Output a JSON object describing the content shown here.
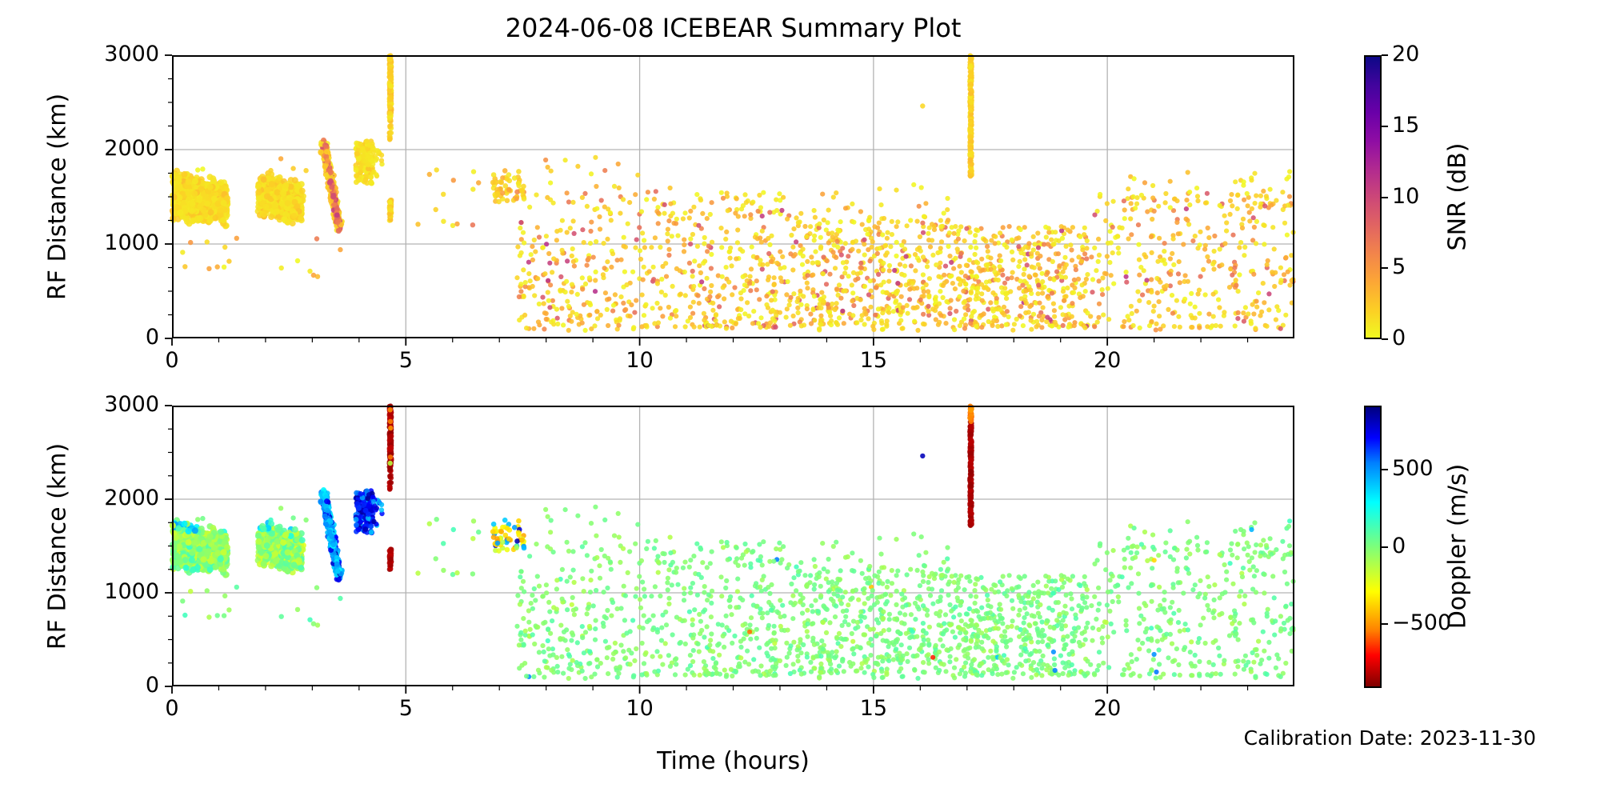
{
  "title": "2024-06-08 ICEBEAR Summary Plot",
  "xlabel": "Time (hours)",
  "ylabel": "RF Distance (km)",
  "footnote": "Calibration Date: 2023-11-30",
  "seed": 20240608,
  "axes": {
    "x": {
      "min": 0,
      "max": 24,
      "majors": [
        0,
        5,
        10,
        15,
        20
      ],
      "minors": [
        1,
        2,
        3,
        4,
        6,
        7,
        8,
        9,
        11,
        12,
        13,
        14,
        16,
        17,
        18,
        19,
        21,
        22,
        23
      ],
      "grid": [
        5,
        10,
        15,
        20
      ]
    },
    "y": {
      "min": 0,
      "max": 3000,
      "majors": [
        0,
        1000,
        2000,
        3000
      ],
      "minors": [
        250,
        500,
        750,
        1250,
        1500,
        1750,
        2250,
        2500,
        2750
      ],
      "grid": [
        1000,
        2000
      ]
    }
  },
  "colorbars": [
    {
      "label": "SNR (dB)",
      "vmin": 0,
      "vmax": 20,
      "ticks": [
        0,
        5,
        10,
        15,
        20
      ],
      "colormap": "plasma_r"
    },
    {
      "label": "Doppler (m/s)",
      "vmin": -912,
      "vmax": 912,
      "ticks": [
        -500,
        0,
        500
      ],
      "colormap": "jet_r"
    }
  ],
  "colormaps": {
    "plasma": [
      [
        0,
        "#0d0887"
      ],
      [
        0.1,
        "#41049d"
      ],
      [
        0.2,
        "#6a00a8"
      ],
      [
        0.3,
        "#8f0da4"
      ],
      [
        0.4,
        "#b12a90"
      ],
      [
        0.5,
        "#cc4778"
      ],
      [
        0.6,
        "#e16462"
      ],
      [
        0.7,
        "#f2844b"
      ],
      [
        0.8,
        "#fca636"
      ],
      [
        0.9,
        "#fcce25"
      ],
      [
        1,
        "#f0f921"
      ]
    ],
    "jet": [
      [
        0,
        "#00007f"
      ],
      [
        0.11,
        "#0000ff"
      ],
      [
        0.2,
        "#0080ff"
      ],
      [
        0.34,
        "#00ffff"
      ],
      [
        0.5,
        "#7dff7a"
      ],
      [
        0.66,
        "#ffff00"
      ],
      [
        0.8,
        "#ff8000"
      ],
      [
        0.89,
        "#ff0000"
      ],
      [
        1,
        "#7f0000"
      ]
    ]
  },
  "style": {
    "grid_color": "#b3b3b3",
    "axis_color": "#000000",
    "bg": "#ffffff",
    "dot_opacity": 0.88
  },
  "chart_data": {
    "type": "scatter",
    "x_unit": "hours",
    "y_unit": "km",
    "xlim": [
      0,
      24
    ],
    "ylim": [
      0,
      3000
    ],
    "panels": [
      {
        "name": "snr",
        "color_by": "SNR (dB)",
        "range": [
          0,
          20
        ]
      },
      {
        "name": "doppler",
        "color_by": "Doppler (m/s)",
        "range": [
          -912,
          912
        ]
      }
    ],
    "features": [
      {
        "kind": "blob",
        "n": 780,
        "t": [
          0.02,
          1.18
        ],
        "km_top": [
          1815,
          1655
        ],
        "km_bot": [
          1235,
          1175
        ],
        "snr": [
          0.8,
          3.2
        ],
        "dop_mean": -20,
        "dop_sd": 90,
        "edge_dop": [
          240,
          520
        ],
        "r": 4
      },
      {
        "kind": "blob",
        "n": 330,
        "t": [
          1.86,
          2.34
        ],
        "km_top": [
          1760,
          1720
        ],
        "km_bot": [
          1260,
          1225
        ],
        "snr": [
          0.8,
          3.2
        ],
        "dop_mean": -25,
        "dop_sd": 95,
        "edge_dop": [
          200,
          430
        ],
        "r": 4
      },
      {
        "kind": "blob",
        "n": 300,
        "t": [
          2.36,
          2.78
        ],
        "km_top": [
          1715,
          1680
        ],
        "km_bot": [
          1230,
          1205
        ],
        "snr": [
          0.8,
          3.0
        ],
        "dop_mean": -30,
        "dop_sd": 95,
        "edge_dop": [
          180,
          400
        ],
        "r": 4
      },
      {
        "kind": "streak",
        "n": 430,
        "from": [
          3.24,
          2065
        ],
        "to": [
          3.58,
          1170
        ],
        "width_t": 0.1,
        "snr_core": [
          4.5,
          11
        ],
        "snr_fringe": [
          0.6,
          3.2
        ],
        "dop": [
          300,
          560
        ],
        "dop_hi": [
          680,
          870
        ],
        "dop_hi_p": 0.14,
        "r": 3.5
      },
      {
        "kind": "patch",
        "n": 140,
        "t": [
          3.93,
          4.3
        ],
        "km": [
          1640,
          2095
        ],
        "snr": [
          0.6,
          2.8
        ],
        "dop_opts": [
          [
            0.75,
            640,
            880
          ],
          [
            0.25,
            380,
            620
          ]
        ],
        "r": 3.4
      },
      {
        "kind": "patch",
        "n": 16,
        "t": [
          4.28,
          4.5
        ],
        "km": [
          1700,
          2100
        ],
        "snr": [
          0.6,
          2.4
        ],
        "dop_opts": [
          [
            0.6,
            640,
            860
          ],
          [
            0.4,
            300,
            500
          ]
        ],
        "r": 3.2
      },
      {
        "kind": "vstreak",
        "t": 4.67,
        "width_t": 0.045,
        "segments": [
          {
            "km": [
              2300,
              2995
            ],
            "n": 170,
            "snr": [
              0.7,
              3.2
            ],
            "dop": [
              -885,
              -800
            ]
          },
          {
            "km": [
              2095,
              2260
            ],
            "n": 12,
            "snr": [
              0.7,
              2.5
            ],
            "dop": [
              -880,
              -800
            ]
          },
          {
            "km": [
              1245,
              1465
            ],
            "n": 42,
            "snr": [
              0.7,
              3.0
            ],
            "dop": [
              -880,
              -800
            ]
          }
        ],
        "extras": [
          [
            4.665,
            2955,
            1.6,
            -520
          ],
          [
            4.67,
            2830,
            2.2,
            -540
          ],
          [
            4.675,
            2760,
            2.0,
            -500
          ],
          [
            4.67,
            2450,
            1.8,
            -560
          ],
          [
            4.665,
            2385,
            1.4,
            -140
          ]
        ],
        "r": 3.2
      },
      {
        "kind": "vstreak",
        "t": 17.08,
        "width_t": 0.04,
        "segments": [
          {
            "km": [
              1715,
              2825
            ],
            "n": 210,
            "snr": [
              0.7,
              3.0
            ],
            "dop": [
              -885,
              -810
            ]
          },
          {
            "km": [
              2825,
              2998
            ],
            "n": 34,
            "snr": [
              0.7,
              3.0
            ],
            "dop": [
              -600,
              -480
            ]
          }
        ],
        "extras": [],
        "r": 3.2
      },
      {
        "kind": "dots",
        "pts": [
          [
            16.05,
            2462,
            1.6,
            820
          ]
        ],
        "r": 3.2
      },
      {
        "kind": "patch",
        "n": 58,
        "t": [
          6.85,
          7.56
        ],
        "km": [
          1445,
          1785
        ],
        "snr": [
          0.8,
          6.5
        ],
        "dop_opts": [
          [
            0.45,
            -420,
            -220
          ],
          [
            0.2,
            -560,
            -430
          ],
          [
            0.2,
            380,
            540
          ],
          [
            0.08,
            700,
            840
          ],
          [
            0.07,
            -180,
            -60
          ]
        ],
        "r": 3.3
      },
      {
        "kind": "scatter",
        "n": 17,
        "t": [
          0.05,
          3.65
        ],
        "km": [
          640,
          1090
        ],
        "pow": 1,
        "snr_scale": 2.2,
        "dop_sd": 70,
        "r": 3.2
      },
      {
        "kind": "scatter",
        "n": 6,
        "t": [
          0.1,
          2.9
        ],
        "km": [
          1775,
          1905
        ],
        "pow": 1,
        "snr_scale": 1.8,
        "dop_sd": 120,
        "r": 3.2
      },
      {
        "kind": "scatter",
        "n": 13,
        "t": [
          5.1,
          6.8
        ],
        "km": [
          1150,
          1800
        ],
        "pow": 1,
        "snr_scale": 2.2,
        "dop_sd": 110,
        "r": 3.2
      },
      {
        "kind": "scatter",
        "n": 240,
        "t": [
          7.35,
          10.2
        ],
        "km": [
          140,
          1560
        ],
        "pow": 1.25,
        "snr_scale": 2.9,
        "dop_sd": 55,
        "r": 3.1
      },
      {
        "kind": "scatter",
        "n": 300,
        "t": [
          10.2,
          13.2
        ],
        "km": [
          115,
          1530
        ],
        "pow": 1.3,
        "snr_scale": 2.9,
        "dop_sd": 55,
        "r": 3.1
      },
      {
        "kind": "scatter",
        "n": 450,
        "t": [
          13.2,
          16.6
        ],
        "km": [
          135,
          1270
        ],
        "pow": 1.15,
        "snr_scale": 2.9,
        "dop_sd": 55,
        "r": 3.1
      },
      {
        "kind": "scatter",
        "n": 440,
        "t": [
          16.6,
          19.6
        ],
        "km": [
          115,
          1190
        ],
        "pow": 1.1,
        "snr_scale": 2.9,
        "dop_sd": 55,
        "r": 3.1
      },
      {
        "kind": "scatter",
        "n": 330,
        "t": [
          19.6,
          23.98
        ],
        "km": [
          115,
          1540
        ],
        "pow": 1.3,
        "snr_scale": 2.9,
        "dop_sd": 55,
        "r": 3.1
      },
      {
        "kind": "scatter",
        "n": 42,
        "t": [
          20.3,
          23.98
        ],
        "km": [
          1380,
          1780
        ],
        "pow": 1,
        "snr_scale": 2.2,
        "dop_sd": 60,
        "r": 3.1
      },
      {
        "kind": "scatter",
        "n": 46,
        "t": [
          10.3,
          16.6
        ],
        "km": [
          1270,
          1630
        ],
        "pow": 1,
        "snr_scale": 2.2,
        "dop_sd": 60,
        "r": 3.1
      },
      {
        "kind": "scatter",
        "n": 14,
        "t": [
          7.9,
          10.1
        ],
        "km": [
          1560,
          1950
        ],
        "pow": 1,
        "snr_scale": 2.0,
        "dop_sd": 60,
        "r": 3.1
      },
      {
        "kind": "scatter",
        "n": 58,
        "t": [
          7.5,
          23.9
        ],
        "km": [
          85,
          140
        ],
        "pow": 1,
        "snr_scale": 2.6,
        "dop_sd": 50,
        "r": 3.1
      },
      {
        "kind": "dots",
        "pts": [
          [
            16.27,
            310,
            2,
            -670
          ],
          [
            18.85,
            368,
            2,
            520
          ],
          [
            18.88,
            171,
            2,
            545
          ],
          [
            21.0,
            342,
            2,
            515
          ],
          [
            21.05,
            154,
            2,
            560
          ],
          [
            15.45,
            720,
            11,
            -40
          ],
          [
            14.9,
            462,
            9,
            -60
          ]
        ],
        "r": 3.1
      }
    ]
  }
}
